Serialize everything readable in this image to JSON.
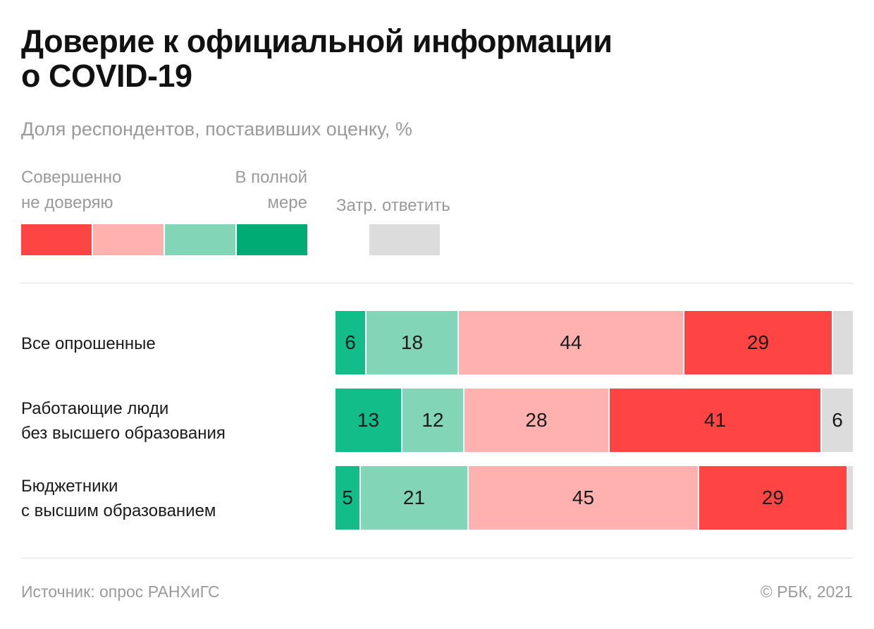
{
  "title": [
    "Доверие к официальной информации",
    "о COVID-19"
  ],
  "subtitle": "Доля респондентов, поставивших оценку, %",
  "legend": {
    "left_label": [
      "Совершенно",
      "не доверяю"
    ],
    "right_label": [
      "В полной",
      "мере"
    ],
    "no_answer_label": "Затр. ответить",
    "scale_colors": [
      "#ff4444",
      "#ffb1b0",
      "#82d6b7",
      "#00ac74"
    ],
    "no_answer_color": "#dcdcdc"
  },
  "chart_data": {
    "type": "bar",
    "orientation": "horizontal",
    "stacked": true,
    "unit": "%",
    "categories": [
      [
        "Все опрошенные"
      ],
      [
        "Работающие люди",
        "без высшего образования"
      ],
      [
        "Бюджетники",
        "с высшим образованием"
      ]
    ],
    "series": [
      {
        "color": "#13bd8a",
        "values": [
          6,
          13,
          5
        ]
      },
      {
        "color": "#82d6b7",
        "values": [
          18,
          12,
          21
        ]
      },
      {
        "color": "#ffb1b0",
        "values": [
          44,
          28,
          45
        ]
      },
      {
        "color": "#ff4444",
        "values": [
          29,
          41,
          29
        ]
      },
      {
        "color": "#dcdcdc",
        "values": [
          4,
          6,
          1
        ]
      }
    ],
    "data_labels": [
      [
        "6",
        "18",
        "44",
        "29",
        ""
      ],
      [
        "13",
        "12",
        "28",
        "41",
        "6"
      ],
      [
        "5",
        "21",
        "45",
        "29",
        ""
      ]
    ]
  },
  "footer": {
    "source": "Источник: опрос РАНХиГС",
    "copyright": "© РБК, 2021"
  }
}
